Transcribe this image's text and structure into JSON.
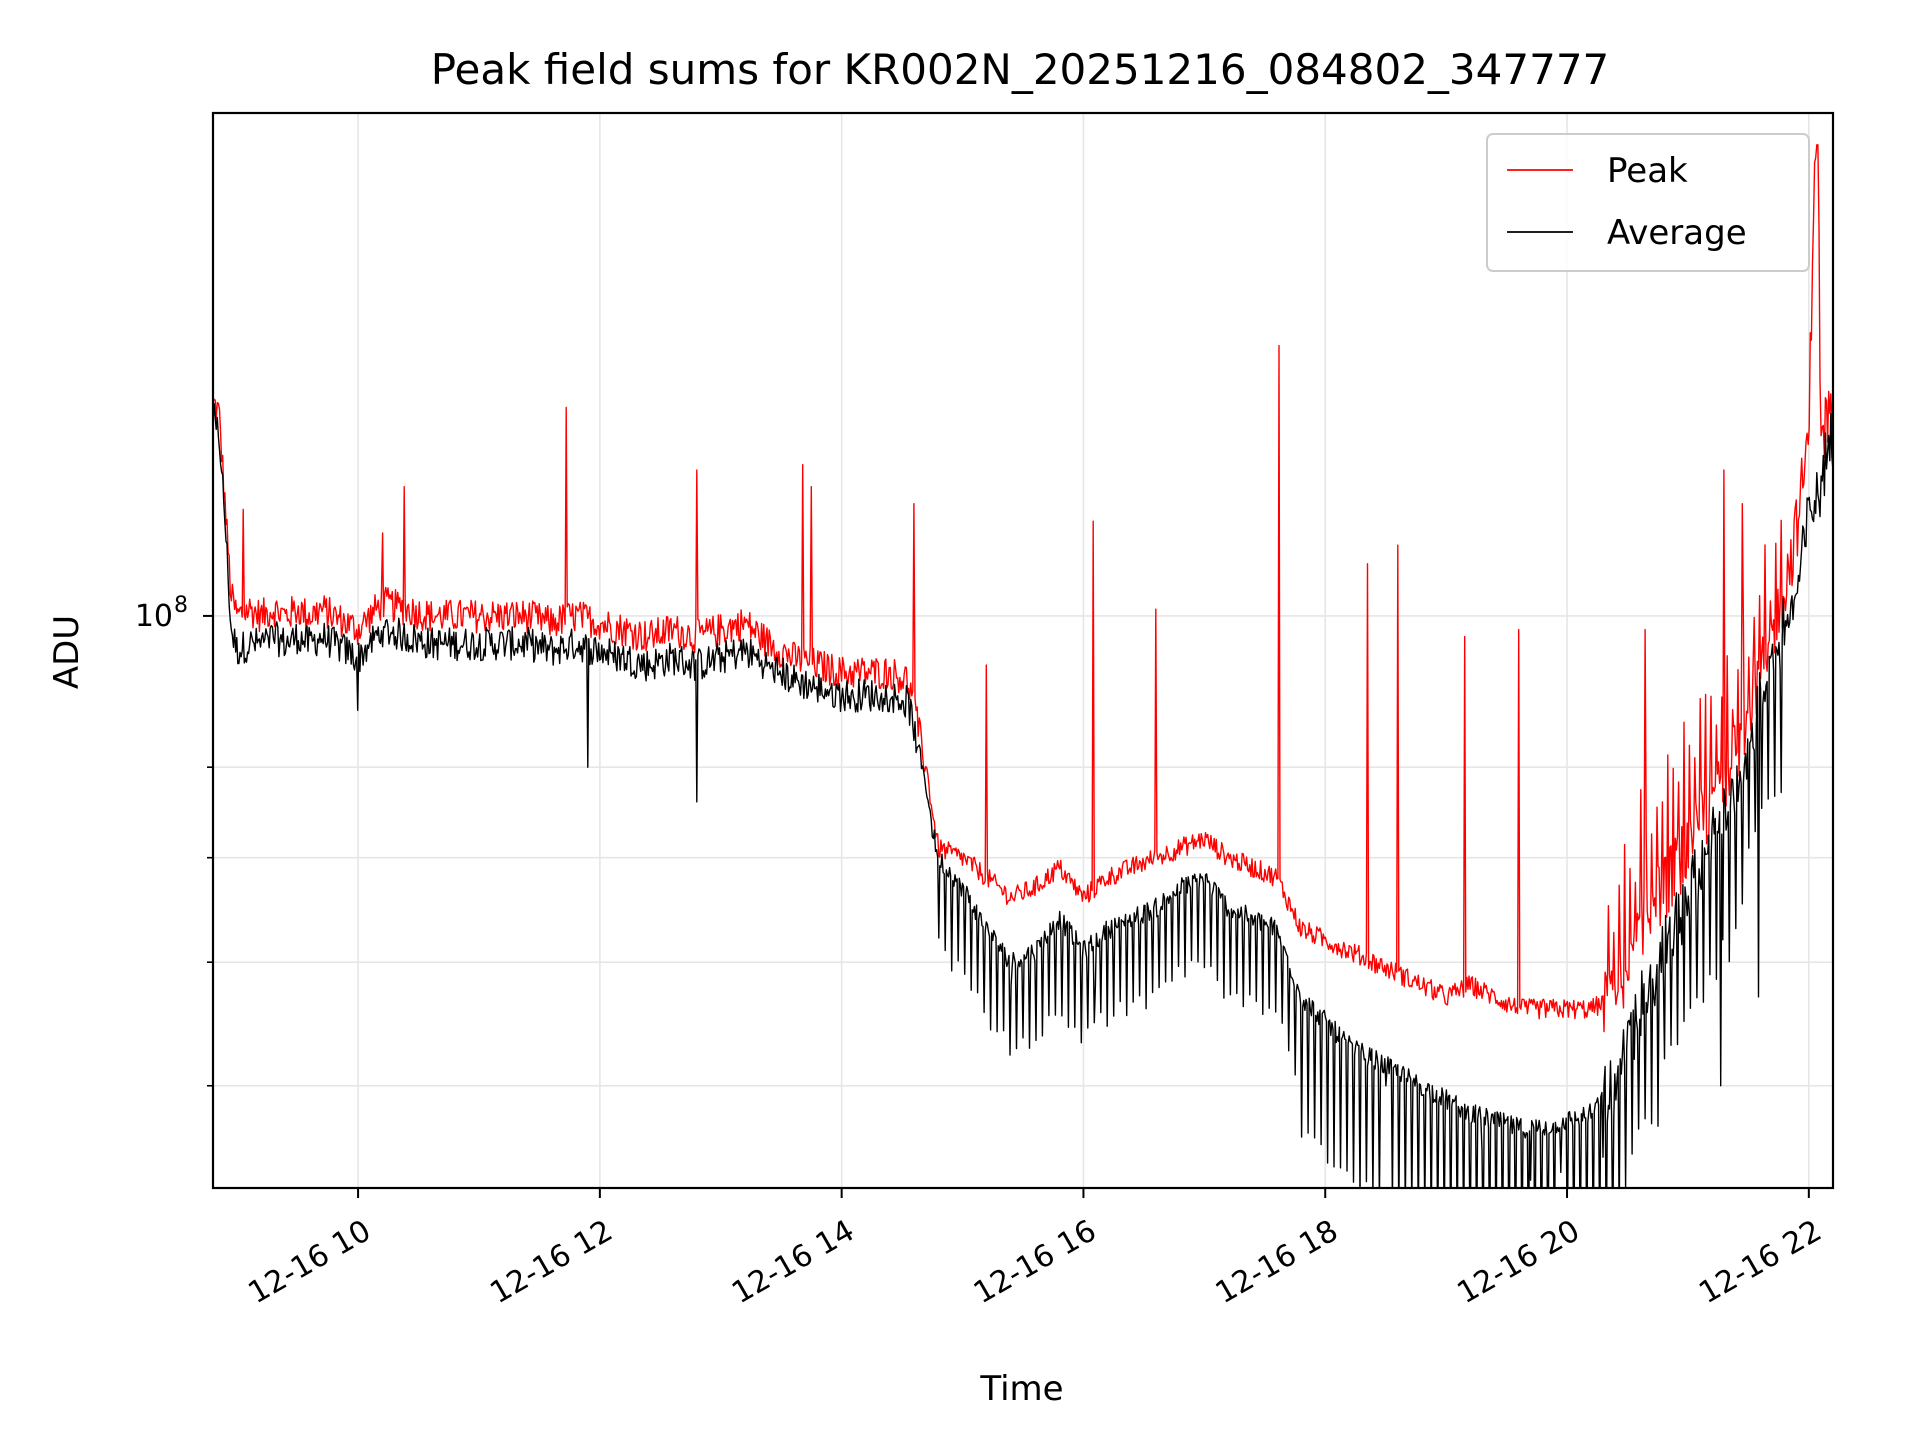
{
  "chart_data": {
    "type": "line",
    "title": "Peak field sums for KR002N_20251216_084802_347777",
    "xlabel": "Time",
    "ylabel": "ADU",
    "x_unit": "hours since 2025-12-16 00:00",
    "xlim": [
      8.8,
      22.2
    ],
    "ylim": [
      43000000,
      210000000
    ],
    "yscale": "log",
    "x_ticks": [
      {
        "value": 10,
        "label": "12-16 10"
      },
      {
        "value": 12,
        "label": "12-16 12"
      },
      {
        "value": 14,
        "label": "12-16 14"
      },
      {
        "value": 16,
        "label": "12-16 16"
      },
      {
        "value": 18,
        "label": "12-16 18"
      },
      {
        "value": 20,
        "label": "12-16 20"
      },
      {
        "value": 22,
        "label": "12-16 22"
      }
    ],
    "y_major_ticks": [
      {
        "value": 100000000,
        "base": "10",
        "exp": "8"
      }
    ],
    "y_minor_ticks": [
      50000000,
      60000000,
      70000000,
      80000000
    ],
    "grid": true,
    "legend_position": "top-right",
    "series": [
      {
        "name": "Peak",
        "color": "#ff0000",
        "x": [
          8.8,
          8.85,
          8.9,
          8.95,
          9.0,
          9.1,
          9.2,
          9.3,
          9.4,
          9.5,
          9.6,
          9.7,
          9.8,
          9.9,
          10.0,
          10.2,
          10.4,
          10.6,
          10.8,
          11.0,
          11.2,
          11.4,
          11.6,
          11.8,
          12.0,
          12.2,
          12.4,
          12.6,
          12.8,
          13.0,
          13.2,
          13.4,
          13.6,
          13.8,
          14.0,
          14.2,
          14.4,
          14.55,
          14.7,
          14.75,
          14.8,
          15.0,
          15.2,
          15.4,
          15.6,
          15.8,
          16.0,
          16.2,
          16.4,
          16.6,
          16.8,
          17.0,
          17.2,
          17.4,
          17.6,
          17.8,
          18.0,
          18.2,
          18.4,
          18.6,
          18.8,
          19.0,
          19.2,
          19.4,
          19.6,
          19.8,
          20.0,
          20.2,
          20.4,
          20.6,
          20.8,
          21.0,
          21.2,
          21.4,
          21.6,
          21.8,
          21.9,
          21.95,
          22.0,
          22.05,
          22.08,
          22.1,
          22.15,
          22.2
        ],
        "y": [
          137000000,
          135000000,
          118000000,
          103000000,
          100000000,
          101000000,
          100000000,
          101000000,
          100000000,
          101000000,
          100000000,
          101000000,
          100000000,
          99000000,
          98000000,
          102000000,
          101000000,
          100000000,
          100000000,
          100000000,
          100000000,
          100000000,
          99000000,
          100000000,
          99000000,
          98000000,
          97000000,
          98000000,
          97000000,
          98000000,
          99000000,
          96000000,
          94000000,
          93000000,
          92000000,
          92000000,
          92000000,
          91000000,
          80000000,
          75000000,
          71000000,
          70000000,
          68000000,
          66000000,
          67000000,
          69000000,
          66000000,
          68000000,
          69000000,
          70000000,
          71000000,
          72000000,
          70000000,
          69000000,
          68000000,
          63000000,
          62000000,
          61000000,
          60000000,
          59000000,
          58000000,
          57000000,
          58000000,
          57000000,
          56000000,
          56000000,
          56000000,
          56000000,
          57000000,
          63000000,
          67000000,
          71000000,
          76000000,
          82000000,
          92000000,
          104000000,
          114000000,
          122000000,
          130000000,
          205000000,
          190000000,
          128000000,
          134000000,
          136000000
        ]
      },
      {
        "name": "Average",
        "color": "#000000",
        "x": [
          8.8,
          8.85,
          8.9,
          8.95,
          9.0,
          9.1,
          9.2,
          9.3,
          9.4,
          9.5,
          9.6,
          9.7,
          9.8,
          9.9,
          10.0,
          10.2,
          10.4,
          10.6,
          10.8,
          11.0,
          11.2,
          11.4,
          11.6,
          11.8,
          12.0,
          12.2,
          12.4,
          12.6,
          12.8,
          13.0,
          13.2,
          13.4,
          13.6,
          13.8,
          14.0,
          14.2,
          14.4,
          14.55,
          14.7,
          14.75,
          14.8,
          15.0,
          15.2,
          15.4,
          15.6,
          15.8,
          16.0,
          16.2,
          16.4,
          16.6,
          16.8,
          17.0,
          17.2,
          17.4,
          17.6,
          17.8,
          18.0,
          18.2,
          18.4,
          18.6,
          18.8,
          19.0,
          19.2,
          19.4,
          19.6,
          19.8,
          20.0,
          20.2,
          20.4,
          20.6,
          20.8,
          21.0,
          21.2,
          21.4,
          21.6,
          21.8,
          21.9,
          21.95,
          22.0,
          22.05,
          22.08,
          22.1,
          22.15,
          22.2
        ],
        "y": [
          134000000,
          131000000,
          115000000,
          98000000,
          95000000,
          96000000,
          96000000,
          97000000,
          96000000,
          97000000,
          96000000,
          97000000,
          96000000,
          95000000,
          94000000,
          98000000,
          97000000,
          96000000,
          96000000,
          96000000,
          96000000,
          96000000,
          95000000,
          96000000,
          95000000,
          94000000,
          93000000,
          94000000,
          93000000,
          94000000,
          95000000,
          93000000,
          91000000,
          90000000,
          89000000,
          89000000,
          89000000,
          88000000,
          78000000,
          73000000,
          70000000,
          67000000,
          63000000,
          60000000,
          61000000,
          64000000,
          61000000,
          63000000,
          64000000,
          65000000,
          67000000,
          68000000,
          65000000,
          64000000,
          63000000,
          57000000,
          55000000,
          53000000,
          52000000,
          51000000,
          50000000,
          49000000,
          48000000,
          47500000,
          47000000,
          47000000,
          47500000,
          48000000,
          50000000,
          56000000,
          61000000,
          66000000,
          72000000,
          79000000,
          88000000,
          99000000,
          103000000,
          109000000,
          116000000,
          119000000,
          118000000,
          122000000,
          128000000,
          130000000
        ]
      }
    ],
    "spikes": {
      "Peak": [
        {
          "x": 9.05,
          "y": 117000000
        },
        {
          "x": 10.2,
          "y": 113000000
        },
        {
          "x": 10.38,
          "y": 121000000
        },
        {
          "x": 11.72,
          "y": 136000000
        },
        {
          "x": 12.8,
          "y": 124000000
        },
        {
          "x": 13.68,
          "y": 125000000
        },
        {
          "x": 13.75,
          "y": 121000000
        },
        {
          "x": 14.6,
          "y": 118000000
        },
        {
          "x": 15.2,
          "y": 93000000
        },
        {
          "x": 16.08,
          "y": 115000000
        },
        {
          "x": 16.6,
          "y": 101000000
        },
        {
          "x": 17.62,
          "y": 149000000
        },
        {
          "x": 18.35,
          "y": 108000000
        },
        {
          "x": 18.6,
          "y": 111000000
        },
        {
          "x": 19.15,
          "y": 97000000
        },
        {
          "x": 19.6,
          "y": 98000000
        },
        {
          "x": 20.65,
          "y": 98000000
        },
        {
          "x": 21.3,
          "y": 124000000
        },
        {
          "x": 21.45,
          "y": 118000000
        }
      ],
      "Average": [
        {
          "x": 10.0,
          "y": 87000000
        },
        {
          "x": 11.9,
          "y": 80000000
        },
        {
          "x": 12.8,
          "y": 76000000
        },
        {
          "x": 15.4,
          "y": 58000000
        },
        {
          "x": 16.1,
          "y": 58000000
        },
        {
          "x": 18.5,
          "y": 50000000
        },
        {
          "x": 19.3,
          "y": 45500000
        },
        {
          "x": 19.7,
          "y": 43500000
        },
        {
          "x": 19.95,
          "y": 44000000
        },
        {
          "x": 20.3,
          "y": 45000000
        },
        {
          "x": 21.27,
          "y": 50000000
        },
        {
          "x": 21.58,
          "y": 57000000
        }
      ]
    }
  }
}
